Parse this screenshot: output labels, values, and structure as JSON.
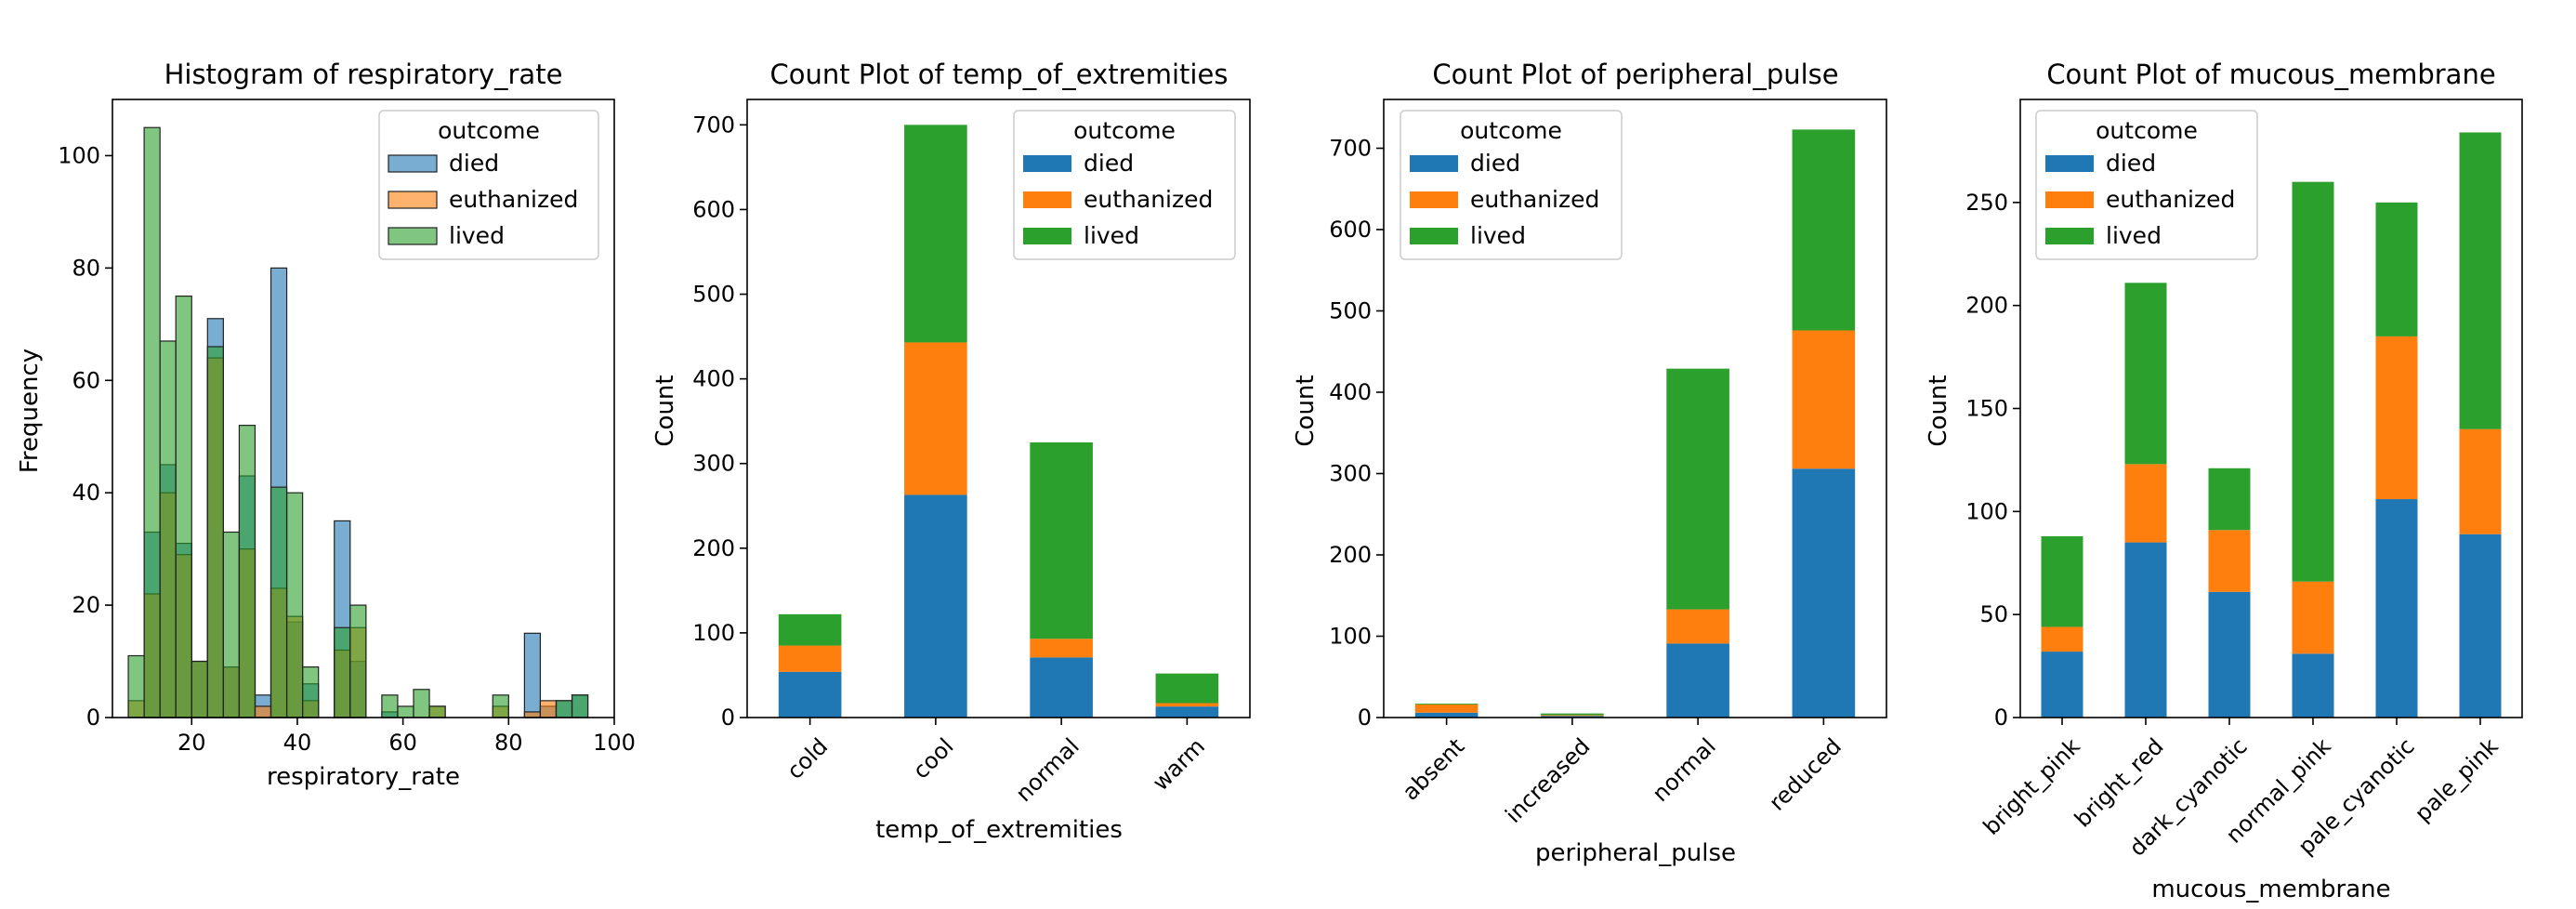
{
  "colors": {
    "died": "#1f77b4",
    "euthanized": "#ff7f0e",
    "lived": "#2ca02c"
  },
  "chart_data": [
    {
      "type": "histogram",
      "title": "Histogram of respiratory_rate",
      "xlabel": "respiratory_rate",
      "ylabel": "Frequency",
      "xlim": [
        5,
        100
      ],
      "ylim": [
        0,
        110
      ],
      "xticks": [
        "20",
        "40",
        "60",
        "80",
        "100"
      ],
      "xtick_values": [
        20,
        40,
        60,
        80,
        100
      ],
      "yticks": [
        "0",
        "20",
        "40",
        "60",
        "80",
        "100"
      ],
      "ytick_values": [
        0,
        20,
        40,
        60,
        80,
        100
      ],
      "legend_title": "outcome",
      "legend_position": "top-right",
      "bin_edges": [
        8,
        11,
        14,
        17,
        20,
        23,
        26,
        29,
        32,
        35,
        38,
        41,
        44,
        47,
        50,
        53,
        56,
        59,
        62,
        65,
        68,
        71,
        74,
        77,
        80,
        83,
        86,
        89,
        92,
        95
      ],
      "series": [
        {
          "name": "died",
          "values": [
            0,
            33,
            45,
            31,
            10,
            71,
            9,
            43,
            4,
            80,
            17,
            6,
            0,
            35,
            10,
            0,
            1,
            0,
            0,
            0,
            0,
            0,
            0,
            0,
            0,
            15,
            2,
            3,
            4
          ]
        },
        {
          "name": "euthanized",
          "values": [
            3,
            22,
            40,
            29,
            10,
            64,
            9,
            30,
            2,
            23,
            18,
            3,
            0,
            12,
            16,
            0,
            0,
            0,
            0,
            2,
            0,
            0,
            0,
            2,
            0,
            1,
            3,
            0,
            0
          ]
        },
        {
          "name": "lived",
          "values": [
            11,
            105,
            67,
            75,
            10,
            66,
            33,
            52,
            0,
            41,
            40,
            9,
            0,
            16,
            20,
            0,
            4,
            2,
            5,
            2,
            0,
            0,
            0,
            4,
            0,
            0,
            0,
            3,
            4
          ]
        }
      ]
    },
    {
      "type": "stacked_bar",
      "title": "Count Plot of temp_of_extremities",
      "xlabel": "temp_of_extremities",
      "ylabel": "Count",
      "ylim": [
        0,
        730
      ],
      "yticks": [
        "0",
        "100",
        "200",
        "300",
        "400",
        "500",
        "600",
        "700"
      ],
      "ytick_values": [
        0,
        100,
        200,
        300,
        400,
        500,
        600,
        700
      ],
      "categories": [
        "cold",
        "cool",
        "normal",
        "warm"
      ],
      "legend_title": "outcome",
      "legend_position": "top-right",
      "series": [
        {
          "name": "died",
          "values": [
            54,
            263,
            71,
            13
          ]
        },
        {
          "name": "euthanized",
          "values": [
            31,
            180,
            22,
            4
          ]
        },
        {
          "name": "lived",
          "values": [
            37,
            257,
            232,
            35
          ]
        }
      ]
    },
    {
      "type": "stacked_bar",
      "title": "Count Plot of peripheral_pulse",
      "xlabel": "peripheral_pulse",
      "ylabel": "Count",
      "ylim": [
        0,
        760
      ],
      "yticks": [
        "0",
        "100",
        "200",
        "300",
        "400",
        "500",
        "600",
        "700"
      ],
      "ytick_values": [
        0,
        100,
        200,
        300,
        400,
        500,
        600,
        700
      ],
      "categories": [
        "absent",
        "increased",
        "normal",
        "reduced"
      ],
      "legend_title": "outcome",
      "legend_position": "top-left",
      "series": [
        {
          "name": "died",
          "values": [
            6,
            2,
            91,
            306
          ]
        },
        {
          "name": "euthanized",
          "values": [
            10,
            1,
            42,
            170
          ]
        },
        {
          "name": "lived",
          "values": [
            1,
            2,
            296,
            247
          ]
        }
      ]
    },
    {
      "type": "stacked_bar",
      "title": "Count Plot of mucous_membrane",
      "xlabel": "mucous_membrane",
      "ylabel": "Count",
      "ylim": [
        0,
        300
      ],
      "yticks": [
        "0",
        "50",
        "100",
        "150",
        "200",
        "250"
      ],
      "ytick_values": [
        0,
        50,
        100,
        150,
        200,
        250
      ],
      "categories": [
        "bright_pink",
        "bright_red",
        "dark_cyanotic",
        "normal_pink",
        "pale_cyanotic",
        "pale_pink"
      ],
      "legend_title": "outcome",
      "legend_position": "top-left",
      "series": [
        {
          "name": "died",
          "values": [
            32,
            85,
            61,
            31,
            106,
            89
          ]
        },
        {
          "name": "euthanized",
          "values": [
            12,
            38,
            30,
            35,
            79,
            51
          ]
        },
        {
          "name": "lived",
          "values": [
            44,
            88,
            30,
            194,
            65,
            144
          ]
        }
      ]
    }
  ]
}
